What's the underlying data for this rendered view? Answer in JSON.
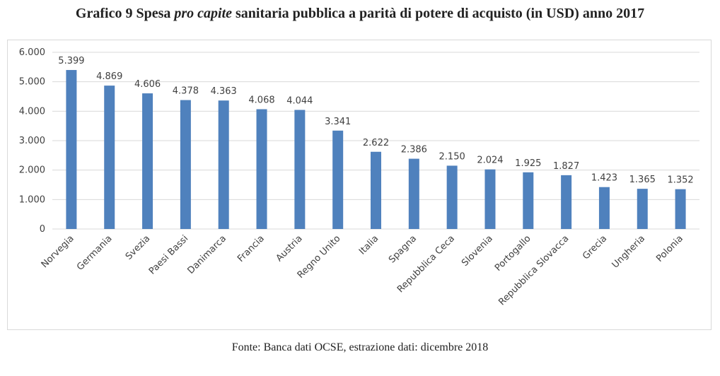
{
  "title": {
    "prefix": "Grafico 9 Spesa ",
    "italic": "pro capite",
    "suffix": " sanitaria pubblica a parità di potere di acquisto (in USD) anno 2017"
  },
  "source": "Fonte: Banca dati OCSE, estrazione dati: dicembre 2018",
  "chart_data": {
    "type": "bar",
    "categories": [
      "Norvegia",
      "Germania",
      "Svezia",
      "Paesi Bassi",
      "Danimarca",
      "Francia",
      "Austria",
      "Regno Unito",
      "Italia",
      "Spagna",
      "Repubblica Ceca",
      "Slovenia",
      "Portogallo",
      "Repubblica Slovacca",
      "Grecia",
      "Ungheria",
      "Polonia"
    ],
    "values": [
      5399,
      4869,
      4606,
      4378,
      4363,
      4068,
      4044,
      3341,
      2622,
      2386,
      2150,
      2024,
      1925,
      1827,
      1423,
      1365,
      1352
    ],
    "value_labels": [
      "5.399",
      "4.869",
      "4.606",
      "4.378",
      "4.363",
      "4.068",
      "4.044",
      "3.341",
      "2.622",
      "2.386",
      "2.150",
      "2.024",
      "1.925",
      "1.827",
      "1.423",
      "1.365",
      "1.352"
    ],
    "ylim": [
      0,
      6000
    ],
    "yticks": [
      0,
      1000,
      2000,
      3000,
      4000,
      5000,
      6000
    ],
    "ytick_labels": [
      "0",
      "1.000",
      "2.000",
      "3.000",
      "4.000",
      "5.000",
      "6.000"
    ],
    "grid": true,
    "bar_color": "#4f81bd",
    "grid_color": "#d9d9d9"
  }
}
